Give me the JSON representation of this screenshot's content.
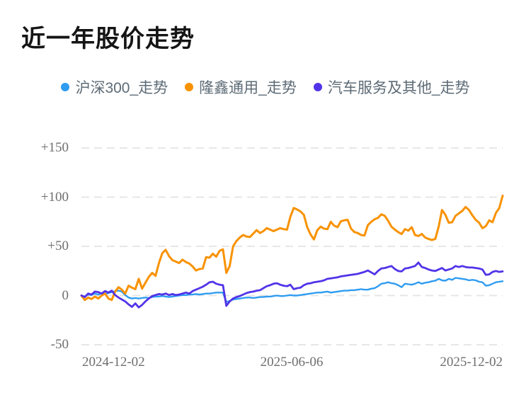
{
  "title": "近一年股价走势",
  "chart_data": {
    "type": "line",
    "title": "近一年股价走势",
    "xlabel": "",
    "ylabel": "",
    "ylim": [
      -50,
      150
    ],
    "grid": "horizontal-dashed",
    "legend_position": "top-center",
    "x_ticks": [
      {
        "label": "2024-12-02",
        "align": "left"
      },
      {
        "label": "2025-06-06",
        "align": "center"
      },
      {
        "label": "2025-12-02",
        "align": "right"
      }
    ],
    "y_ticks": [
      {
        "label": "+150",
        "value": 150
      },
      {
        "label": "+100",
        "value": 100
      },
      {
        "label": "+50",
        "value": 50
      },
      {
        "label": "0",
        "value": 0
      },
      {
        "label": "-50",
        "value": -50
      }
    ],
    "series": [
      {
        "key": "hs300",
        "name": "沪深300_走势",
        "color": "#2e9cf1",
        "values": [
          0,
          -1,
          1,
          0.5,
          2,
          1,
          2.5,
          1.5,
          2.5,
          3.5,
          4.5,
          5,
          4,
          0.5,
          -2,
          -3,
          -2.5,
          -3,
          -2.5,
          -2,
          -2.5,
          -1.5,
          -1,
          -1,
          -0.5,
          -1,
          -1.5,
          -1,
          -0.5,
          0,
          0.5,
          0.5,
          1,
          1,
          1.5,
          1,
          1.5,
          2,
          2,
          2.5,
          3,
          3,
          3,
          -6.5,
          -5.5,
          -4,
          -3.5,
          -3,
          -2.5,
          -2,
          -2,
          -2.5,
          -2,
          -1.5,
          -1.5,
          -1,
          -1,
          -0.5,
          0,
          -0.5,
          -0.5,
          0,
          0.5,
          0,
          0,
          0.5,
          1,
          1.5,
          2,
          2.5,
          3,
          3,
          3.5,
          4,
          3,
          3.5,
          4,
          4.5,
          5,
          5,
          5.5,
          5.5,
          6,
          6.5,
          6,
          6,
          7,
          7.5,
          9.5,
          12,
          12.5,
          13.5,
          12.5,
          12,
          10.5,
          8.5,
          12,
          11.5,
          11,
          12,
          13.5,
          12,
          13,
          13.5,
          14.5,
          15,
          17,
          15.5,
          15,
          17,
          16,
          18,
          17.5,
          17,
          16.5,
          15.5,
          16,
          15.5,
          14,
          13.5,
          10,
          10.5,
          12,
          13.5,
          14,
          14.5
        ]
      },
      {
        "key": "longxin-general",
        "name": "隆鑫通用_走势",
        "color": "#f89200",
        "values": [
          0,
          -4.5,
          -2,
          -3.5,
          -1,
          -3,
          0,
          2,
          -3,
          -4.5,
          4,
          8.5,
          6,
          2,
          10,
          8,
          6.5,
          17,
          7,
          13,
          19,
          23,
          20,
          33,
          43,
          46.5,
          40,
          36,
          34.5,
          33,
          36.5,
          34,
          32.5,
          29.5,
          25.5,
          27,
          27.5,
          39,
          38.5,
          42.5,
          39.5,
          45.5,
          47,
          23,
          30,
          50,
          55.5,
          59,
          61.5,
          60,
          59.5,
          63,
          66.5,
          63.5,
          65.5,
          68.5,
          67,
          65.5,
          67,
          68.5,
          67.5,
          67,
          80,
          89,
          87.5,
          85.5,
          82,
          69.5,
          62,
          57,
          66.5,
          70,
          68,
          67.5,
          75,
          71,
          69.5,
          75.5,
          76.5,
          77,
          68,
          64.5,
          63.5,
          61.5,
          61,
          71.5,
          75,
          77.5,
          79,
          82.5,
          81,
          76,
          70,
          67,
          64.5,
          62.5,
          67.5,
          66,
          69.5,
          61.5,
          60.5,
          62.5,
          59,
          57.5,
          56.5,
          57.5,
          70,
          87,
          82,
          74,
          74.5,
          81,
          83.5,
          86,
          90,
          87,
          81.5,
          77,
          74,
          68.5,
          70.5,
          76.5,
          74.5,
          84,
          89,
          101.5
        ]
      },
      {
        "key": "auto-services-other",
        "name": "汽车服务及其他_走势",
        "color": "#5233e8",
        "values": [
          0,
          -1.5,
          2,
          1,
          4,
          3.5,
          2,
          4.5,
          3,
          5,
          0.5,
          -2,
          -4,
          -6,
          -9,
          -11.5,
          -8,
          -12,
          -9.5,
          -6,
          -3,
          -0.5,
          0.5,
          1.5,
          1,
          2,
          0.5,
          1.5,
          0.5,
          1,
          2,
          3,
          2,
          4.5,
          6,
          7.5,
          9,
          11,
          13.5,
          14,
          12,
          11,
          10.5,
          -10.5,
          -6,
          -3,
          -1.5,
          -0.5,
          1,
          2.5,
          3.5,
          4,
          5,
          5.5,
          7.5,
          9.5,
          10.5,
          12,
          12.5,
          11,
          10,
          9.5,
          11,
          6.5,
          7.5,
          8,
          10.5,
          12,
          12.5,
          13.5,
          14,
          14.5,
          15.5,
          17,
          17.5,
          18,
          18.5,
          19.5,
          20,
          20.5,
          21,
          21.5,
          22,
          23,
          24,
          25.5,
          23.5,
          21.5,
          25,
          27.5,
          28,
          29,
          30,
          27,
          25,
          24.5,
          27.5,
          28,
          29,
          30,
          33.5,
          29,
          28,
          26.5,
          25.5,
          25,
          26.5,
          28,
          25.5,
          26.5,
          27.5,
          30,
          29,
          30,
          29,
          28.5,
          28.5,
          28,
          27.5,
          26.5,
          21,
          21.5,
          24,
          25,
          24,
          24.5
        ]
      }
    ]
  },
  "colors": {
    "background": "#ffffff",
    "title_text": "#151515",
    "legend_text": "#5d6b76",
    "axis_text": "#6e6e6e",
    "gridline": "#e4e4e4"
  }
}
